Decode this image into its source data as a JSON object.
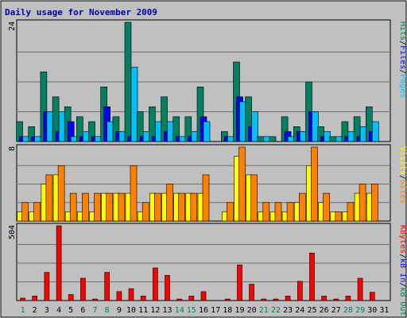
{
  "chart_data": {
    "type": "bar",
    "title": "Daily usage for November 2009",
    "days": [
      "1",
      "2",
      "3",
      "4",
      "5",
      "6",
      "7",
      "8",
      "9",
      "10",
      "11",
      "12",
      "13",
      "14",
      "15",
      "16",
      "17",
      "18",
      "19",
      "20",
      "21",
      "22",
      "23",
      "24",
      "25",
      "26",
      "27",
      "28",
      "29",
      "30",
      "31"
    ],
    "weekend_days": [
      "1",
      "7",
      "8",
      "14",
      "15",
      "21",
      "22",
      "28",
      "29"
    ],
    "colors": {
      "frame": "#000000",
      "panel_bg": "#c0c0c0",
      "outer_bg": "#ffffff",
      "grid": "#707070",
      "title": "#0000b0",
      "hits": "#008060",
      "files": "#0000ff",
      "pages": "#00c0ff",
      "visits": "#ffff00",
      "sites": "#ff8000",
      "kbf": "#ff0000",
      "kbin": "#0000ff",
      "kbout": "#008060",
      "weekday_label": "#000000",
      "weekend_label": "#008060"
    },
    "panels": [
      {
        "id": "usage",
        "ymax_label": "24",
        "ymax": 24,
        "legend": [
          {
            "text": "Hits",
            "color": "#008060"
          },
          {
            "text": "/",
            "color": "#000000"
          },
          {
            "text": "Files",
            "color": "#0000ff"
          },
          {
            "text": "/",
            "color": "#000000"
          },
          {
            "text": "Pages",
            "color": "#00c0ff"
          }
        ],
        "series": [
          {
            "name": "Hits",
            "color": "#008060",
            "values": [
              4,
              3,
              14,
              9,
              7,
              5,
              4,
              11,
              5,
              24,
              6,
              7,
              9,
              5,
              5,
              11,
              0,
              2,
              16,
              9,
              1,
              1,
              5,
              3,
              12,
              3,
              1,
              4,
              5,
              7,
              0
            ]
          },
          {
            "name": "Files",
            "color": "#0000ff",
            "values": [
              1,
              1,
              6,
              2,
              4,
              1,
              1,
              7,
              2,
              1,
              1,
              1,
              2,
              1,
              1,
              5,
              0,
              1,
              9,
              3,
              0,
              0,
              2,
              2,
              6,
              1,
              0,
              1,
              1,
              2,
              0
            ]
          },
          {
            "name": "Pages",
            "color": "#00c0ff",
            "values": [
              1,
              1,
              6,
              6,
              1,
              2,
              1,
              4,
              2,
              15,
              2,
              4,
              4,
              1,
              2,
              4,
              0,
              1,
              8,
              6,
              1,
              0,
              1,
              2,
              6,
              2,
              1,
              2,
              3,
              4,
              0
            ]
          }
        ]
      },
      {
        "id": "visits",
        "ymax_label": "8",
        "ymax": 8,
        "legend": [
          {
            "text": "Visits",
            "color": "#ffff00"
          },
          {
            "text": "/",
            "color": "#000000"
          },
          {
            "text": "Sites",
            "color": "#ff8000"
          }
        ],
        "series": [
          {
            "name": "Visits",
            "color": "#ffff00",
            "values": [
              1,
              1,
              4,
              5,
              1,
              1,
              1,
              3,
              3,
              3,
              1,
              3,
              3,
              3,
              3,
              3,
              0,
              1,
              7,
              5,
              1,
              1,
              1,
              2,
              6,
              2,
              1,
              1,
              3,
              3,
              0
            ]
          },
          {
            "name": "Sites",
            "color": "#ff8000",
            "values": [
              2,
              2,
              5,
              6,
              3,
              3,
              3,
              3,
              3,
              6,
              2,
              3,
              4,
              3,
              3,
              5,
              0,
              2,
              8,
              5,
              2,
              2,
              2,
              3,
              8,
              3,
              1,
              2,
              4,
              4,
              0
            ]
          }
        ]
      },
      {
        "id": "kbytes",
        "ymax_label": "504",
        "ymax": 504,
        "legend": [
          {
            "text": "KBytes",
            "color": "#ff0000"
          },
          {
            "text": "/",
            "color": "#000000"
          },
          {
            "text": "kB In",
            "color": "#0000ff"
          },
          {
            "text": "/",
            "color": "#000000"
          },
          {
            "text": "kB Out",
            "color": "#008060"
          }
        ],
        "series": [
          {
            "name": "KBytes",
            "color": "#ff0000",
            "values": [
              16,
              30,
              190,
              504,
              40,
              150,
              10,
              190,
              60,
              80,
              30,
              220,
              170,
              10,
              30,
              60,
              0,
              10,
              240,
              110,
              10,
              10,
              30,
              130,
              320,
              30,
              10,
              30,
              150,
              55,
              0
            ]
          }
        ]
      }
    ]
  }
}
